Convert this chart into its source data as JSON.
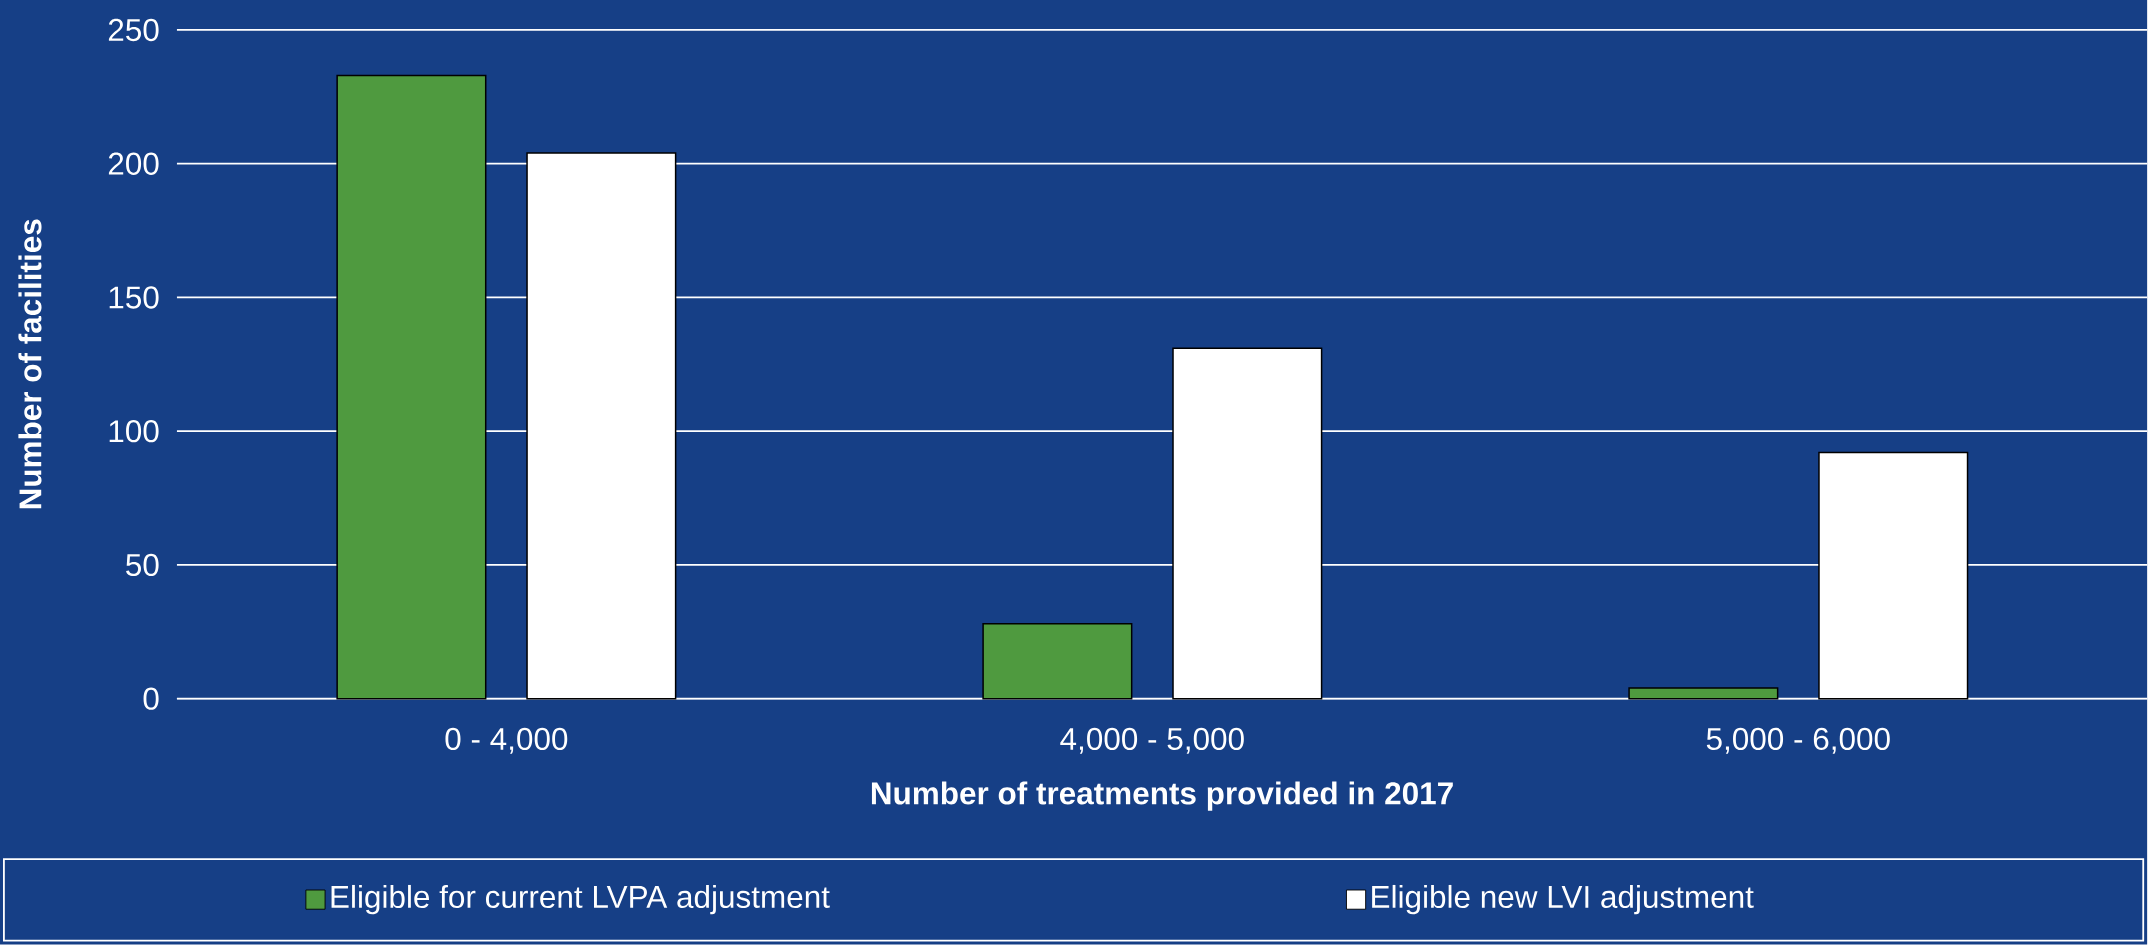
{
  "chart_data": {
    "type": "bar",
    "xlabel": "Number of treatments provided in 2017",
    "ylabel": "Number of facilities",
    "categories": [
      "0 - 4,000",
      "4,000 - 5,000",
      "5,000 - 6,000"
    ],
    "series": [
      {
        "name": "Eligible for current  LVPA adjustment",
        "color": "#4f9a3f",
        "values": [
          233,
          28,
          4
        ]
      },
      {
        "name": "Eligible new LVI adjustment",
        "color": "#ffffff",
        "values": [
          204,
          131,
          92
        ]
      }
    ],
    "ylim": [
      0,
      250
    ],
    "yticks": [
      0,
      50,
      100,
      150,
      200,
      250
    ],
    "grid": "y",
    "legend": "bottom"
  }
}
